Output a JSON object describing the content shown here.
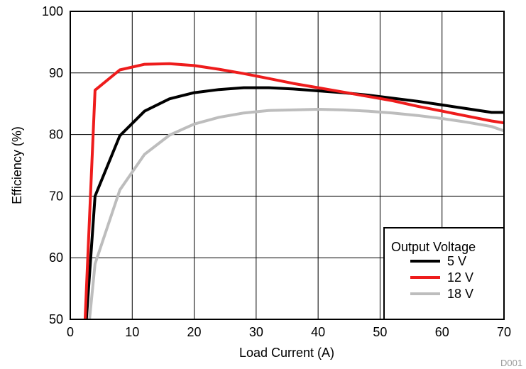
{
  "chart_data": {
    "type": "line",
    "xlabel": "Load Current (A)",
    "ylabel": "Efficiency (%)",
    "xlim": [
      0,
      70
    ],
    "ylim": [
      50,
      100
    ],
    "xticks": [
      0,
      10,
      20,
      30,
      40,
      50,
      60,
      70
    ],
    "yticks": [
      50,
      60,
      70,
      80,
      90,
      100
    ],
    "grid": true,
    "legend": {
      "title": "Output Voltage",
      "placement": "bottom-right"
    },
    "series": [
      {
        "name": "5 V",
        "color": "#000000",
        "x": [
          2.6,
          4,
          8,
          12,
          16,
          20,
          24,
          28,
          32,
          36,
          40,
          44,
          48,
          52,
          56,
          60,
          64,
          68,
          70
        ],
        "y": [
          50,
          70,
          79.8,
          83.8,
          85.8,
          86.8,
          87.3,
          87.6,
          87.6,
          87.4,
          87.1,
          86.8,
          86.4,
          85.9,
          85.4,
          84.8,
          84.2,
          83.6,
          83.6
        ]
      },
      {
        "name": "12 V",
        "color": "#ee1c1c",
        "x": [
          2.4,
          4,
          8,
          12,
          16,
          20,
          24,
          28,
          32,
          36,
          40,
          44,
          48,
          52,
          56,
          60,
          64,
          68,
          70
        ],
        "y": [
          50,
          87.2,
          90.5,
          91.4,
          91.5,
          91.2,
          90.6,
          89.9,
          89.1,
          88.3,
          87.6,
          86.9,
          86.2,
          85.5,
          84.6,
          83.8,
          83.0,
          82.2,
          81.9
        ]
      },
      {
        "name": "18 V",
        "color": "#bdbdbd",
        "x": [
          3.1,
          4,
          8,
          12,
          16,
          20,
          24,
          28,
          32,
          36,
          40,
          44,
          48,
          52,
          56,
          60,
          64,
          68,
          70
        ],
        "y": [
          50,
          59,
          71,
          76.8,
          79.9,
          81.7,
          82.8,
          83.5,
          83.9,
          84.0,
          84.1,
          84.0,
          83.8,
          83.5,
          83.1,
          82.6,
          82.0,
          81.3,
          80.6
        ]
      }
    ]
  },
  "watermark": "D001"
}
